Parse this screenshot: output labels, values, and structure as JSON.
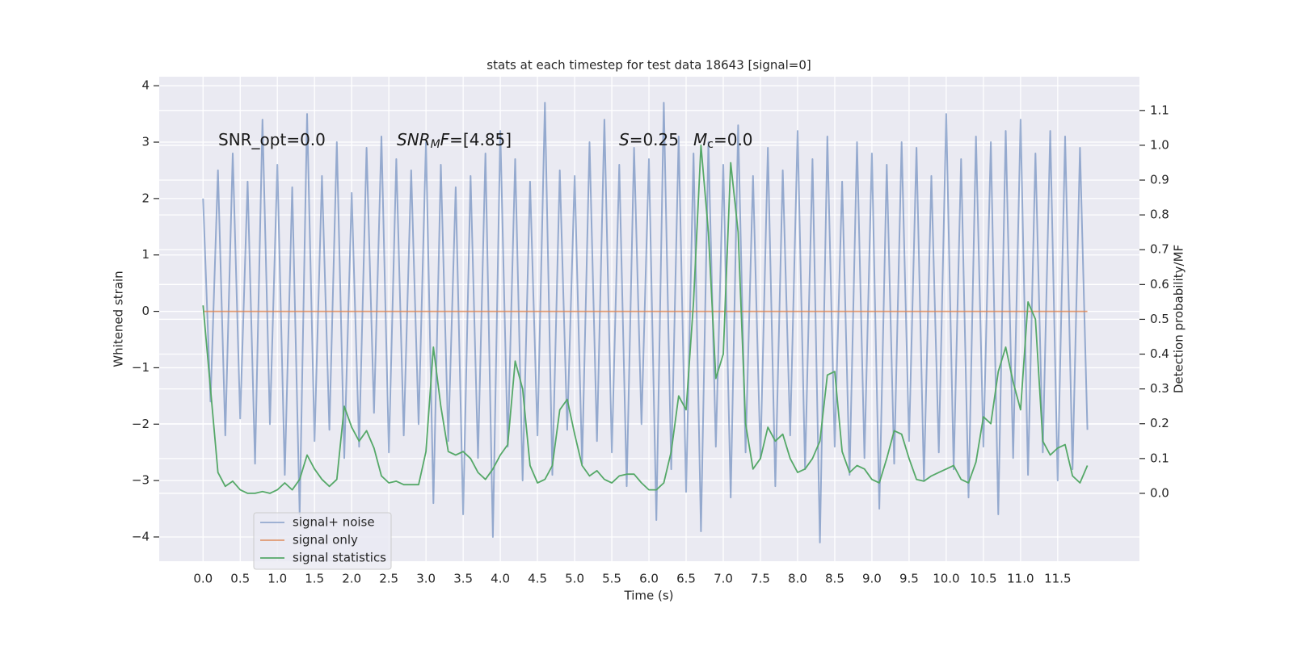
{
  "chart_data": {
    "type": "line",
    "title": "stats at each timestep for test data 18643 [signal=0]",
    "xlabel": "Time (s)",
    "ylabel": "Whitened strain",
    "y2label": "Detection probability/MF",
    "annotations": [
      {
        "parts": [
          "SNR_opt=0.0"
        ]
      },
      {
        "parts": [
          "SNR",
          "M",
          "F",
          "=[4.85]"
        ]
      },
      {
        "parts": [
          "S",
          "=0.25"
        ]
      },
      {
        "parts": [
          "M",
          "c",
          "=0.0"
        ]
      }
    ],
    "x": [
      0,
      0.1,
      0.2,
      0.3,
      0.4,
      0.5,
      0.6,
      0.7,
      0.8,
      0.9,
      1,
      1.1,
      1.2,
      1.3,
      1.4,
      1.5,
      1.6,
      1.7,
      1.8,
      1.9,
      2,
      2.1,
      2.2,
      2.3,
      2.4,
      2.5,
      2.6,
      2.7,
      2.8,
      2.9,
      3,
      3.1,
      3.2,
      3.3,
      3.4,
      3.5,
      3.6,
      3.7,
      3.8,
      3.9,
      4,
      4.1,
      4.2,
      4.3,
      4.4,
      4.5,
      4.6,
      4.7,
      4.8,
      4.9,
      5,
      5.1,
      5.2,
      5.3,
      5.4,
      5.5,
      5.6,
      5.7,
      5.8,
      5.9,
      6,
      6.1,
      6.2,
      6.3,
      6.4,
      6.5,
      6.6,
      6.7,
      6.8,
      6.9,
      7,
      7.1,
      7.2,
      7.3,
      7.4,
      7.5,
      7.6,
      7.7,
      7.8,
      7.9,
      8,
      8.1,
      8.2,
      8.3,
      8.4,
      8.5,
      8.6,
      8.7,
      8.8,
      8.9,
      9,
      9.1,
      9.2,
      9.3,
      9.4,
      9.5,
      9.6,
      9.7,
      9.8,
      9.9,
      10,
      10.1,
      10.2,
      10.3,
      10.4,
      10.5,
      10.6,
      10.7,
      10.8,
      10.9,
      11,
      11.1,
      11.2,
      11.3,
      11.4,
      11.5,
      11.6,
      11.7,
      11.8,
      11.9
    ],
    "series": [
      {
        "name": "signal+ noise",
        "color": "#4c72b0",
        "opacity": 0.55,
        "values": [
          2.0,
          -1.6,
          2.5,
          -2.2,
          2.8,
          -1.9,
          2.3,
          -2.7,
          3.4,
          -2.0,
          2.6,
          -2.9,
          2.2,
          -3.6,
          3.5,
          -2.3,
          2.4,
          -2.1,
          3.0,
          -2.6,
          2.1,
          -2.4,
          2.9,
          -1.8,
          3.1,
          -2.5,
          2.7,
          -2.2,
          2.5,
          -2.0,
          3.0,
          -3.4,
          2.6,
          -2.3,
          2.2,
          -3.6,
          2.4,
          -2.6,
          2.8,
          -4.0,
          3.2,
          -2.4,
          2.7,
          -3.0,
          2.3,
          -2.2,
          3.7,
          -2.9,
          2.5,
          -2.1,
          2.4,
          -2.7,
          3.0,
          -2.3,
          3.4,
          -2.5,
          2.6,
          -3.1,
          2.9,
          -2.0,
          2.7,
          -3.7,
          3.7,
          -2.8,
          3.1,
          -3.2,
          2.8,
          -3.9,
          3.0,
          -2.4,
          2.6,
          -3.3,
          3.3,
          -2.5,
          2.4,
          -2.6,
          2.9,
          -3.1,
          2.5,
          -2.2,
          3.2,
          -2.8,
          2.7,
          -4.1,
          3.1,
          -2.4,
          2.3,
          -2.9,
          3.0,
          -2.6,
          2.8,
          -3.5,
          2.6,
          -2.7,
          3.0,
          -2.3,
          2.9,
          -3.0,
          2.4,
          -2.5,
          3.5,
          -2.8,
          2.7,
          -3.3,
          3.1,
          -2.4,
          3.0,
          -3.6,
          3.2,
          -2.6,
          3.4,
          -2.9,
          2.8,
          -2.5,
          3.2,
          -3.0,
          3.1,
          -2.8,
          2.9,
          -2.1
        ]
      },
      {
        "name": "signal only",
        "color": "#dd8452",
        "opacity": 0.8,
        "values": [
          0,
          0,
          0,
          0,
          0,
          0,
          0,
          0,
          0,
          0,
          0,
          0,
          0,
          0,
          0,
          0,
          0,
          0,
          0,
          0,
          0,
          0,
          0,
          0,
          0,
          0,
          0,
          0,
          0,
          0,
          0,
          0,
          0,
          0,
          0,
          0,
          0,
          0,
          0,
          0,
          0,
          0,
          0,
          0,
          0,
          0,
          0,
          0,
          0,
          0,
          0,
          0,
          0,
          0,
          0,
          0,
          0,
          0,
          0,
          0,
          0,
          0,
          0,
          0,
          0,
          0,
          0,
          0,
          0,
          0,
          0,
          0,
          0,
          0,
          0,
          0,
          0,
          0,
          0,
          0,
          0,
          0,
          0,
          0,
          0,
          0,
          0,
          0,
          0,
          0,
          0,
          0,
          0,
          0,
          0,
          0,
          0,
          0,
          0,
          0,
          0,
          0,
          0,
          0,
          0,
          0,
          0,
          0,
          0,
          0,
          0,
          0,
          0,
          0,
          0,
          0,
          0,
          0,
          0,
          0
        ]
      },
      {
        "name": "signal statistics",
        "color": "#55a868",
        "opacity": 1,
        "axis": "y2",
        "values": [
          0.54,
          0.3,
          0.06,
          0.02,
          0.035,
          0.01,
          0.0,
          0.0,
          0.005,
          0.0,
          0.01,
          0.03,
          0.01,
          0.04,
          0.11,
          0.07,
          0.04,
          0.02,
          0.04,
          0.25,
          0.19,
          0.15,
          0.18,
          0.13,
          0.05,
          0.03,
          0.035,
          0.025,
          0.025,
          0.025,
          0.12,
          0.42,
          0.25,
          0.12,
          0.11,
          0.12,
          0.1,
          0.06,
          0.04,
          0.07,
          0.11,
          0.14,
          0.38,
          0.3,
          0.08,
          0.03,
          0.04,
          0.08,
          0.24,
          0.27,
          0.17,
          0.08,
          0.05,
          0.065,
          0.04,
          0.03,
          0.05,
          0.055,
          0.055,
          0.03,
          0.01,
          0.01,
          0.03,
          0.12,
          0.28,
          0.24,
          0.55,
          1.0,
          0.75,
          0.33,
          0.4,
          0.95,
          0.75,
          0.2,
          0.07,
          0.1,
          0.19,
          0.15,
          0.17,
          0.1,
          0.06,
          0.07,
          0.1,
          0.15,
          0.34,
          0.35,
          0.12,
          0.06,
          0.08,
          0.07,
          0.04,
          0.03,
          0.1,
          0.18,
          0.17,
          0.1,
          0.04,
          0.035,
          0.05,
          0.06,
          0.07,
          0.08,
          0.04,
          0.03,
          0.09,
          0.22,
          0.2,
          0.35,
          0.42,
          0.32,
          0.24,
          0.55,
          0.5,
          0.15,
          0.11,
          0.13,
          0.14,
          0.05,
          0.03,
          0.08
        ]
      }
    ],
    "xlim": [
      -0.59,
      12.6
    ],
    "xticks": [
      {
        "value": 0,
        "label": "0.0"
      },
      0.5,
      {
        "value": 1,
        "label": "1.0"
      },
      1.5,
      {
        "value": 2,
        "label": "2.0"
      },
      2.5,
      {
        "value": 3,
        "label": "3.0"
      },
      3.5,
      {
        "value": 4,
        "label": "4.0"
      },
      4.5,
      {
        "value": 5,
        "label": "5.0"
      },
      5.5,
      {
        "value": 6,
        "label": "6.0"
      },
      6.5,
      {
        "value": 7,
        "label": "7.0"
      },
      7.5,
      {
        "value": 8,
        "label": "8.0"
      },
      8.5,
      {
        "value": 9,
        "label": "9.0"
      },
      9.5,
      {
        "value": 10,
        "label": "10.0"
      },
      10.5,
      {
        "value": 11,
        "label": "11.0"
      },
      11.5
    ],
    "ylim": [
      -4.43,
      4.16
    ],
    "yticks": [
      {
        "value": -4,
        "label": "−4"
      },
      {
        "value": -3,
        "label": "−3"
      },
      {
        "value": -2,
        "label": "−2"
      },
      {
        "value": -1,
        "label": "−1"
      },
      0,
      1,
      2,
      3,
      4
    ],
    "y2lim": [
      -0.195,
      1.197
    ],
    "y2ticks": [
      {
        "value": 0,
        "label": "0.0"
      },
      0.1,
      0.2,
      0.3,
      0.4,
      0.5,
      0.6,
      0.7,
      0.8,
      0.9,
      {
        "value": 1,
        "label": "1.0"
      },
      1.1
    ],
    "grid": true,
    "legend": "lower left",
    "background": "#eaeaf2"
  }
}
